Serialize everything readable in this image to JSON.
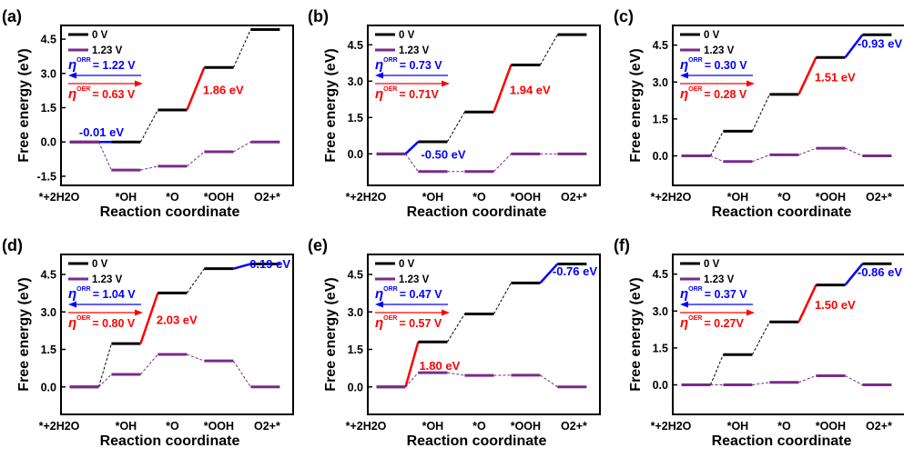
{
  "figure": {
    "ylabel": "Free energy (eV)",
    "xlabel": "Reaction coordinate"
  },
  "chart_data": [
    {
      "type": "line",
      "panel": "(a)",
      "categories": [
        "*+2H2O",
        "*OH",
        "*O",
        "*OOH",
        "O2+*"
      ],
      "yticks": [
        "4.5",
        "3.0",
        "1.5",
        "0.0",
        "-1.5"
      ],
      "ylim": [
        -1.9,
        5.1
      ],
      "series": [
        {
          "name": "0 V",
          "color": "#000000",
          "values": [
            0.0,
            0.0,
            1.4,
            3.26,
            4.92
          ]
        },
        {
          "name": "1.23 V",
          "color": "#7a2a8c",
          "values": [
            0.0,
            -1.23,
            -1.06,
            -0.43,
            0.0
          ]
        }
      ],
      "eta_orr": "= 1.22 V",
      "eta_oer": "= 0.63 V",
      "annotations": [
        {
          "text": "-0.01 eV",
          "color": "blue",
          "segment": 0
        },
        {
          "text": "1.86 eV",
          "color": "red",
          "segment": 2
        }
      ]
    },
    {
      "type": "line",
      "panel": "(b)",
      "categories": [
        "*+2H2O",
        "*OH",
        "*O",
        "*OOH",
        "O2+*"
      ],
      "yticks": [
        "4.5",
        "3.0",
        "1.5",
        "0.0"
      ],
      "ylim": [
        -1.3,
        5.3
      ],
      "series": [
        {
          "name": "0 V",
          "color": "#000000",
          "values": [
            0.0,
            0.5,
            1.73,
            3.67,
            4.92
          ]
        },
        {
          "name": "1.23 V",
          "color": "#7a2a8c",
          "values": [
            0.0,
            -0.73,
            -0.73,
            0.0,
            0.0
          ]
        }
      ],
      "eta_orr": "= 0.73 V",
      "eta_oer": "= 0.71V",
      "annotations": [
        {
          "text": "-0.50 eV",
          "color": "blue",
          "segment": 0
        },
        {
          "text": "1.94 eV",
          "color": "red",
          "segment": 2
        }
      ]
    },
    {
      "type": "line",
      "panel": "(c)",
      "categories": [
        "*+2H2O",
        "*OH",
        "*O",
        "*OOH",
        "O2+*"
      ],
      "yticks": [
        "4.5",
        "3.0",
        "1.5",
        "0.0"
      ],
      "ylim": [
        -1.2,
        5.3
      ],
      "series": [
        {
          "name": "0 V",
          "color": "#000000",
          "values": [
            0.0,
            1.0,
            2.5,
            4.0,
            4.92
          ]
        },
        {
          "name": "1.23 V",
          "color": "#7a2a8c",
          "values": [
            0.0,
            -0.23,
            0.04,
            0.31,
            0.0
          ]
        }
      ],
      "eta_orr": "= 0.30 V",
      "eta_oer": "= 0.28 V",
      "annotations": [
        {
          "text": "-0.93 eV",
          "color": "blue",
          "segment": 3
        },
        {
          "text": "1.51 eV",
          "color": "red",
          "segment": 2
        }
      ]
    },
    {
      "type": "line",
      "panel": "(d)",
      "categories": [
        "*+2H2O",
        "*OH",
        "*O",
        "*OOH",
        "O2+*"
      ],
      "yticks": [
        "4.5",
        "3.0",
        "1.5",
        "0.0"
      ],
      "ylim": [
        -1.1,
        5.3
      ],
      "series": [
        {
          "name": "0 V",
          "color": "#000000",
          "values": [
            0.0,
            1.73,
            3.76,
            4.73,
            4.92
          ]
        },
        {
          "name": "1.23 V",
          "color": "#7a2a8c",
          "values": [
            0.0,
            0.5,
            1.3,
            1.04,
            0.0
          ]
        }
      ],
      "eta_orr": "= 1.04 V",
      "eta_oer": "= 0.80 V",
      "annotations": [
        {
          "text": "-0.19 eV",
          "color": "blue",
          "segment": 3
        },
        {
          "text": "2.03 eV",
          "color": "red",
          "segment": 1
        }
      ]
    },
    {
      "type": "line",
      "panel": "(e)",
      "categories": [
        "*+2H2O",
        "*OH",
        "*O",
        "*OOH",
        "O2+*"
      ],
      "yticks": [
        "4.5",
        "3.0",
        "1.5",
        "0.0"
      ],
      "ylim": [
        -1.1,
        5.3
      ],
      "series": [
        {
          "name": "0 V",
          "color": "#000000",
          "values": [
            0.0,
            1.8,
            2.92,
            4.16,
            4.92
          ]
        },
        {
          "name": "1.23 V",
          "color": "#7a2a8c",
          "values": [
            0.0,
            0.57,
            0.46,
            0.47,
            0.0
          ]
        }
      ],
      "eta_orr": "= 0.47 V",
      "eta_oer": "= 0.57 V",
      "annotations": [
        {
          "text": "-0.76 eV",
          "color": "blue",
          "segment": 3
        },
        {
          "text": "1.80 eV",
          "color": "red",
          "segment": 0
        }
      ]
    },
    {
      "type": "line",
      "panel": "(f)",
      "categories": [
        "*+2H2O",
        "*OH",
        "*O",
        "*OOH",
        "O2+*"
      ],
      "yticks": [
        "4.5",
        "3.0",
        "1.5",
        "0.0"
      ],
      "ylim": [
        -1.2,
        5.3
      ],
      "series": [
        {
          "name": "0 V",
          "color": "#000000",
          "values": [
            0.0,
            1.23,
            2.56,
            4.06,
            4.92
          ]
        },
        {
          "name": "1.23 V",
          "color": "#7a2a8c",
          "values": [
            0.0,
            0.0,
            0.1,
            0.37,
            0.0
          ]
        }
      ],
      "eta_orr": "= 0.37 V",
      "eta_oer": "= 0.27V",
      "annotations": [
        {
          "text": "-0.86 eV",
          "color": "blue",
          "segment": 3
        },
        {
          "text": "1.50 eV",
          "color": "red",
          "segment": 2
        }
      ]
    }
  ]
}
